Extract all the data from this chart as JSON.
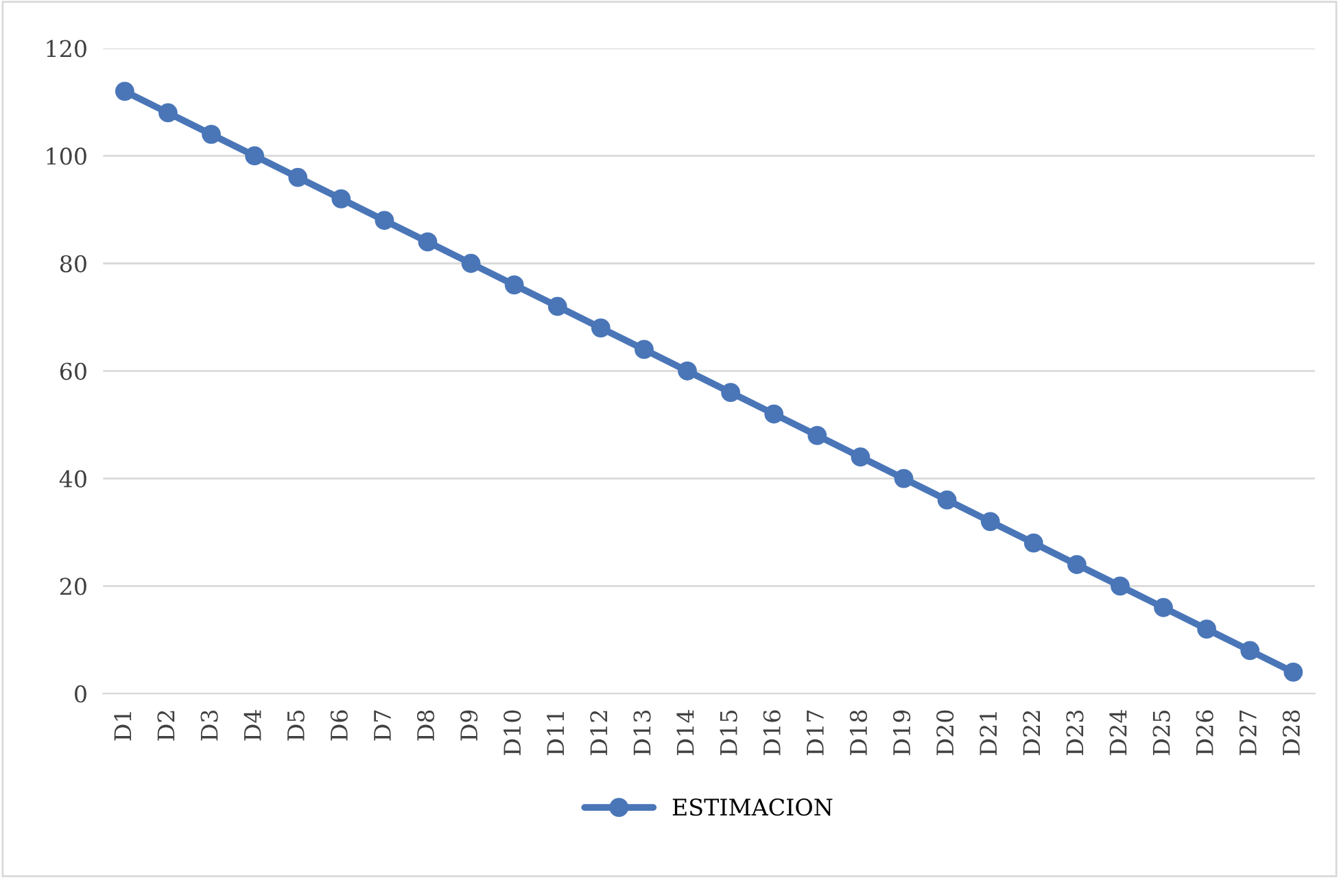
{
  "chart_data": {
    "type": "line",
    "categories": [
      "D1",
      "D2",
      "D3",
      "D4",
      "D5",
      "D6",
      "D7",
      "D8",
      "D9",
      "D10",
      "D11",
      "D12",
      "D13",
      "D14",
      "D15",
      "D16",
      "D17",
      "D18",
      "D19",
      "D20",
      "D21",
      "D22",
      "D23",
      "D24",
      "D25",
      "D26",
      "D27",
      "D28"
    ],
    "series": [
      {
        "name": "ESTIMACION",
        "color": "#4a76b8",
        "values": [
          112,
          108,
          104,
          100,
          96,
          92,
          88,
          84,
          80,
          76,
          72,
          68,
          64,
          60,
          56,
          52,
          48,
          44,
          40,
          36,
          32,
          28,
          24,
          20,
          16,
          12,
          8,
          4
        ]
      }
    ],
    "ylim": [
      0,
      120
    ],
    "yticks": [
      0,
      20,
      40,
      60,
      80,
      100,
      120
    ],
    "grid": "y",
    "legend": "bottom",
    "marker": "circle",
    "line_style": "solid"
  }
}
